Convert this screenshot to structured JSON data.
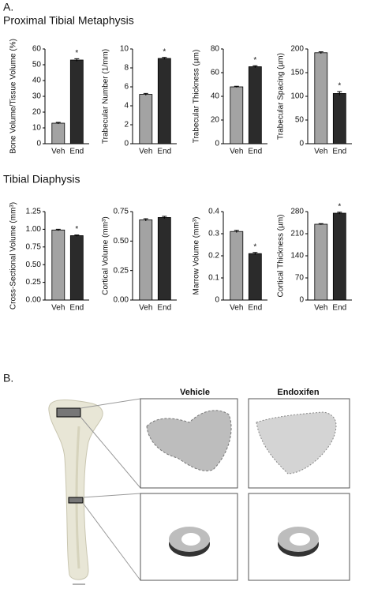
{
  "figure": {
    "panel_a": "A.",
    "section_1": "Proximal Tibial Metaphysis",
    "section_2": "Tibial Diaphysis",
    "panel_b": "B.",
    "columns": [
      "Vehicle",
      "Endoxifen"
    ]
  },
  "chart_data": [
    {
      "type": "bar",
      "y_label": "Bone Volume/Tissue Volume (%)",
      "categories": [
        "Veh",
        "End"
      ],
      "values": [
        13,
        53
      ],
      "errors": [
        0.5,
        0.8
      ],
      "colors": [
        "#a3a3a3",
        "#2b2b2b"
      ],
      "ylim": [
        0,
        60
      ],
      "yticks": [
        0,
        10,
        20,
        30,
        40,
        50,
        60
      ],
      "annotations": [
        {
          "x": "End",
          "text": "*"
        }
      ]
    },
    {
      "type": "bar",
      "y_label": "Trabecular Number (1/mm)",
      "categories": [
        "Veh",
        "End"
      ],
      "values": [
        5.2,
        9.0
      ],
      "errors": [
        0.1,
        0.1
      ],
      "colors": [
        "#a3a3a3",
        "#2b2b2b"
      ],
      "ylim": [
        0,
        10
      ],
      "yticks": [
        0,
        2,
        4,
        6,
        8,
        10
      ],
      "annotations": [
        {
          "x": "End",
          "text": "*"
        }
      ]
    },
    {
      "type": "bar",
      "y_label": "Trabecular Thickness (µm)",
      "categories": [
        "Veh",
        "End"
      ],
      "values": [
        48,
        65
      ],
      "errors": [
        0.5,
        0.8
      ],
      "colors": [
        "#a3a3a3",
        "#2b2b2b"
      ],
      "ylim": [
        0,
        80
      ],
      "yticks": [
        0,
        20,
        40,
        60,
        80
      ],
      "annotations": [
        {
          "x": "End",
          "text": "*"
        }
      ]
    },
    {
      "type": "bar",
      "y_label": "Trabecular Spacing (µm)",
      "categories": [
        "Veh",
        "End"
      ],
      "values": [
        192,
        106
      ],
      "errors": [
        2,
        4
      ],
      "colors": [
        "#a3a3a3",
        "#2b2b2b"
      ],
      "ylim": [
        0,
        200
      ],
      "yticks": [
        0,
        50,
        100,
        150,
        200
      ],
      "annotations": [
        {
          "x": "End",
          "text": "*"
        }
      ]
    },
    {
      "type": "bar",
      "y_label": "Cross-Sectional Volume (mm³)",
      "categories": [
        "Veh",
        "End"
      ],
      "values": [
        0.99,
        0.91
      ],
      "errors": [
        0.01,
        0.01
      ],
      "colors": [
        "#a3a3a3",
        "#2b2b2b"
      ],
      "ylim": [
        0,
        1.25
      ],
      "yticks": [
        {
          "value": 0,
          "label": "0.00"
        },
        0.25,
        {
          "value": 0.5,
          "label": "0.50"
        },
        0.75,
        {
          "value": 1,
          "label": "1.00"
        },
        1.25
      ],
      "annotations": [
        {
          "x": "End",
          "text": "*"
        }
      ]
    },
    {
      "type": "bar",
      "y_label": "Cortical Volume (mm³)",
      "categories": [
        "Veh",
        "End"
      ],
      "values": [
        0.68,
        0.7
      ],
      "errors": [
        0.01,
        0.01
      ],
      "colors": [
        "#a3a3a3",
        "#2b2b2b"
      ],
      "ylim": [
        0,
        0.75
      ],
      "yticks": [
        {
          "value": 0,
          "label": "0.00"
        },
        0.25,
        {
          "value": 0.5,
          "label": "0.50"
        },
        0.75
      ]
    },
    {
      "type": "bar",
      "y_label": "Marrow Volume (mm³)",
      "categories": [
        "Veh",
        "End"
      ],
      "values": [
        0.31,
        0.21
      ],
      "errors": [
        0.005,
        0.005
      ],
      "colors": [
        "#a3a3a3",
        "#2b2b2b"
      ],
      "ylim": [
        0,
        0.4
      ],
      "yticks": [
        0,
        0.1,
        0.2,
        0.3,
        0.4
      ],
      "annotations": [
        {
          "x": "End",
          "text": "*"
        }
      ]
    },
    {
      "type": "bar",
      "y_label": "Cortical Thickness (µm)",
      "categories": [
        "Veh",
        "End"
      ],
      "values": [
        240,
        275
      ],
      "errors": [
        2,
        3
      ],
      "colors": [
        "#a3a3a3",
        "#2b2b2b"
      ],
      "ylim": [
        0,
        280
      ],
      "yticks": [
        0,
        70,
        140,
        210,
        280
      ],
      "annotations": [
        {
          "x": "End",
          "text": "*"
        }
      ]
    }
  ]
}
